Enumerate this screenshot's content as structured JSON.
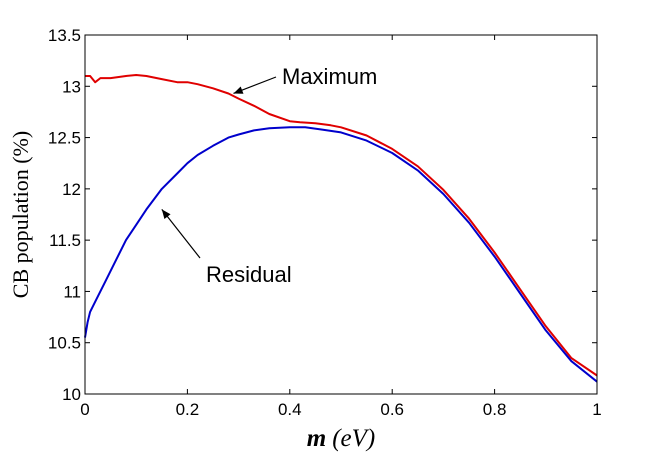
{
  "chart_data": {
    "type": "line",
    "title": "",
    "xlabel_var": "m",
    "xlabel_unit": "(eV)",
    "ylabel": "CB population (%)",
    "xlim": [
      0,
      1
    ],
    "ylim": [
      10,
      13.5
    ],
    "xticks": [
      0,
      0.2,
      0.4,
      0.6,
      0.8,
      1
    ],
    "xtick_labels": [
      "0",
      "0.2",
      "0.4",
      "0.6",
      "0.8",
      "1"
    ],
    "yticks": [
      10,
      10.5,
      11,
      11.5,
      12,
      12.5,
      13,
      13.5
    ],
    "ytick_labels": [
      "10",
      "10.5",
      "11",
      "11.5",
      "12",
      "12.5",
      "13",
      "13.5"
    ],
    "grid": false,
    "series": [
      {
        "name": "Maximum",
        "color": "#e00000",
        "x": [
          0,
          0.01,
          0.02,
          0.03,
          0.05,
          0.08,
          0.1,
          0.12,
          0.15,
          0.18,
          0.2,
          0.22,
          0.25,
          0.28,
          0.3,
          0.33,
          0.36,
          0.4,
          0.42,
          0.45,
          0.48,
          0.5,
          0.55,
          0.6,
          0.65,
          0.7,
          0.75,
          0.8,
          0.85,
          0.9,
          0.95,
          1.0
        ],
        "y": [
          13.1,
          13.1,
          13.04,
          13.08,
          13.08,
          13.1,
          13.11,
          13.1,
          13.07,
          13.04,
          13.04,
          13.02,
          12.98,
          12.93,
          12.88,
          12.81,
          12.73,
          12.66,
          12.65,
          12.64,
          12.62,
          12.6,
          12.52,
          12.39,
          12.22,
          11.99,
          11.71,
          11.38,
          11.02,
          10.66,
          10.35,
          10.18
        ]
      },
      {
        "name": "Residual",
        "color": "#0000cc",
        "x": [
          0,
          0.005,
          0.01,
          0.02,
          0.04,
          0.06,
          0.08,
          0.1,
          0.12,
          0.15,
          0.18,
          0.2,
          0.22,
          0.25,
          0.28,
          0.3,
          0.33,
          0.36,
          0.4,
          0.43,
          0.46,
          0.5,
          0.55,
          0.6,
          0.65,
          0.7,
          0.75,
          0.8,
          0.85,
          0.9,
          0.95,
          1.0
        ],
        "y": [
          10.55,
          10.7,
          10.8,
          10.9,
          11.1,
          11.3,
          11.5,
          11.65,
          11.8,
          12.0,
          12.15,
          12.25,
          12.33,
          12.42,
          12.5,
          12.53,
          12.57,
          12.59,
          12.6,
          12.6,
          12.58,
          12.55,
          12.47,
          12.35,
          12.18,
          11.95,
          11.67,
          11.34,
          10.98,
          10.62,
          10.32,
          10.12
        ]
      }
    ],
    "annotations": [
      {
        "text": "Maximum",
        "target_x": 0.29,
        "target_y": 12.93
      },
      {
        "text": "Residual",
        "target_x": 0.15,
        "target_y": 11.8
      }
    ]
  }
}
